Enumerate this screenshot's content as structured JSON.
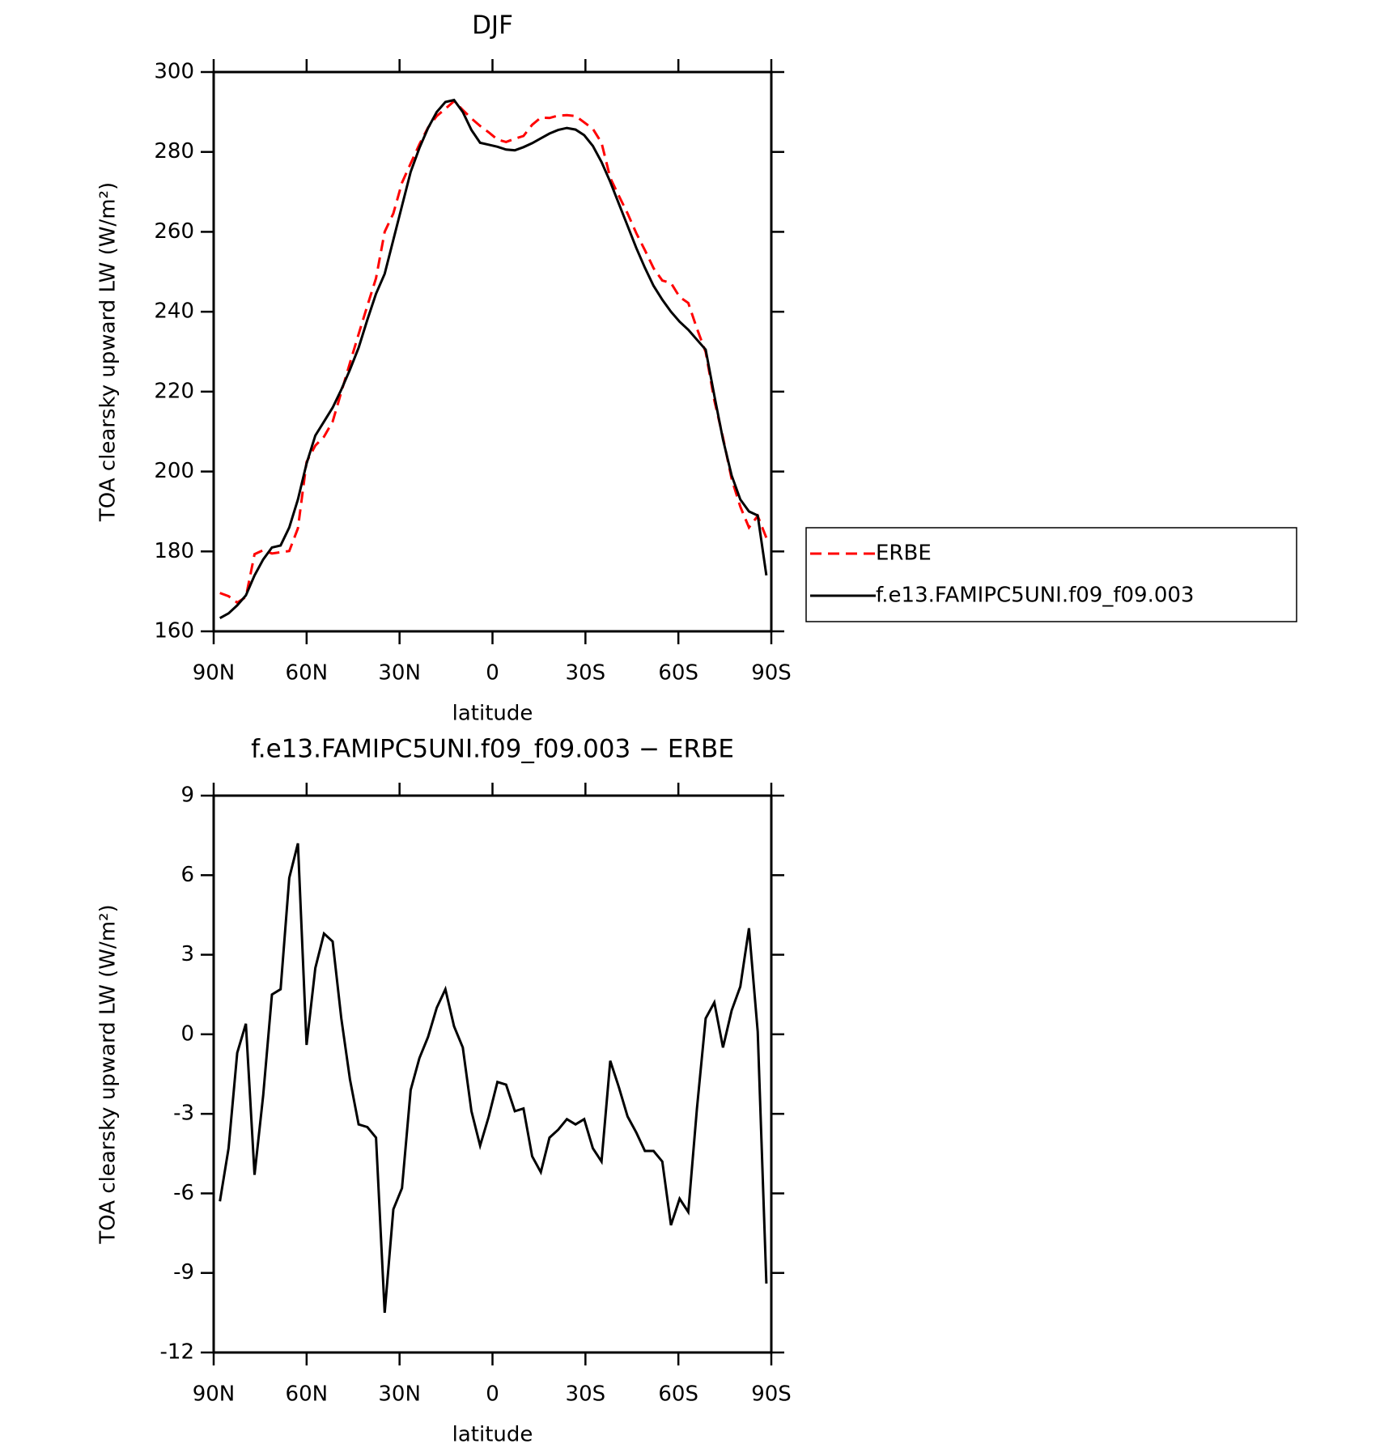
{
  "chart_data": [
    {
      "type": "line",
      "title": "DJF",
      "xlabel": "latitude",
      "ylabel": "TOA clearsky upward LW (W/m²)",
      "x": [
        88,
        85.2,
        82.4,
        79.6,
        76.8,
        74,
        71.2,
        68.4,
        65.6,
        62.8,
        60,
        57.2,
        54.4,
        51.6,
        48.8,
        46,
        43.2,
        40.4,
        37.6,
        34.8,
        32,
        29.2,
        26.4,
        23.6,
        20.8,
        18,
        15.2,
        12.4,
        9.6,
        6.8,
        4,
        1.2,
        -1.6,
        -4.4,
        -7.2,
        -10,
        -12.8,
        -15.6,
        -18.4,
        -21.2,
        -24,
        -26.8,
        -29.6,
        -32.4,
        -35.2,
        -38,
        -40.8,
        -43.6,
        -46.4,
        -49.2,
        -52,
        -54.8,
        -57.6,
        -60.4,
        -63.2,
        -66,
        -68.8,
        -71.6,
        -74.4,
        -77.2,
        -80,
        -82.8,
        -85.6,
        -88.4
      ],
      "series": [
        {
          "name": "ERBE",
          "color": "#ff0000",
          "line_style": "dashed",
          "values": [
            169.6,
            168.8,
            167.2,
            168.6,
            179.3,
            180.3,
            179.5,
            179.8,
            180.1,
            185.8,
            202.4,
            206.5,
            208.7,
            212.5,
            219.9,
            227.2,
            234.4,
            241.5,
            248.4,
            260,
            264.6,
            272.3,
            277.1,
            281.9,
            286.1,
            289,
            290.8,
            292.7,
            290.5,
            288.4,
            286.5,
            284.9,
            283.1,
            282.5,
            283.3,
            284,
            286.8,
            288.6,
            288.5,
            289.1,
            289.2,
            289,
            287.4,
            285.8,
            282.3,
            273.5,
            269,
            264.6,
            259.7,
            255.4,
            250.9,
            247.8,
            247.2,
            243.7,
            242.2,
            235.8,
            229.9,
            217.8,
            208.5,
            198.1,
            191.2,
            186,
            188.9,
            183.4
          ]
        },
        {
          "name": "f.e13.FAMIPC5UNI.f09_f09.003",
          "color": "#000000",
          "line_style": "solid",
          "values": [
            163.3,
            164.5,
            166.5,
            169,
            174,
            178,
            181,
            181.5,
            186,
            193,
            202,
            209,
            212.5,
            216,
            220.5,
            225.5,
            231,
            238,
            244.5,
            249.5,
            258,
            266.5,
            275,
            281,
            286,
            290,
            292.5,
            293,
            290,
            285.5,
            282.3,
            281.8,
            281.3,
            280.6,
            280.4,
            281.2,
            282.2,
            283.4,
            284.6,
            285.5,
            286,
            285.6,
            284.2,
            281.5,
            277.5,
            272.5,
            267,
            261.5,
            256,
            251,
            246.5,
            243,
            240,
            237.5,
            235.5,
            233,
            230.5,
            219,
            208,
            199,
            193,
            190,
            189,
            174
          ]
        }
      ],
      "xlim": [
        90,
        -90
      ],
      "xticks": [
        {
          "value": 90,
          "label": "90N"
        },
        {
          "value": 60,
          "label": "60N"
        },
        {
          "value": 30,
          "label": "30N"
        },
        0,
        {
          "value": -30,
          "label": "30S"
        },
        {
          "value": -60,
          "label": "60S"
        },
        {
          "value": -90,
          "label": "90S"
        }
      ],
      "ylim": [
        160,
        300
      ],
      "yticks": [
        160,
        180,
        200,
        220,
        240,
        260,
        280,
        300
      ],
      "legend": "right"
    },
    {
      "type": "line",
      "title": "f.e13.FAMIPC5UNI.f09_f09.003 − ERBE",
      "xlabel": "latitude",
      "ylabel": "TOA clearsky upward LW (W/m²)",
      "x": [
        88,
        85.2,
        82.4,
        79.6,
        76.8,
        74,
        71.2,
        68.4,
        65.6,
        62.8,
        60,
        57.2,
        54.4,
        51.6,
        48.8,
        46,
        43.2,
        40.4,
        37.6,
        34.8,
        32,
        29.2,
        26.4,
        23.6,
        20.8,
        18,
        15.2,
        12.4,
        9.6,
        6.8,
        4,
        1.2,
        -1.6,
        -4.4,
        -7.2,
        -10,
        -12.8,
        -15.6,
        -18.4,
        -21.2,
        -24,
        -26.8,
        -29.6,
        -32.4,
        -35.2,
        -38,
        -40.8,
        -43.6,
        -46.4,
        -49.2,
        -52,
        -54.8,
        -57.6,
        -60.4,
        -63.2,
        -66,
        -68.8,
        -71.6,
        -74.4,
        -77.2,
        -80,
        -82.8,
        -85.6,
        -88.4
      ],
      "series": [
        {
          "color": "#000000",
          "line_style": "solid",
          "values": [
            -6.3,
            -4.3,
            -0.7,
            0.4,
            -5.3,
            -2.3,
            1.5,
            1.7,
            5.9,
            7.2,
            -0.4,
            2.5,
            3.8,
            3.5,
            0.6,
            -1.7,
            -3.4,
            -3.5,
            -3.9,
            -10.5,
            -6.6,
            -5.8,
            -2.1,
            -0.9,
            -0.1,
            1.0,
            1.7,
            0.3,
            -0.5,
            -2.9,
            -4.2,
            -3.1,
            -1.8,
            -1.9,
            -2.9,
            -2.8,
            -4.6,
            -5.2,
            -3.9,
            -3.6,
            -3.2,
            -3.4,
            -3.2,
            -4.3,
            -4.8,
            -1.0,
            -2.0,
            -3.1,
            -3.7,
            -4.4,
            -4.4,
            -4.8,
            -7.2,
            -6.2,
            -6.7,
            -2.8,
            0.6,
            1.2,
            -0.5,
            0.9,
            1.8,
            4.0,
            0.1,
            -9.4
          ]
        }
      ],
      "xlim": [
        90,
        -90
      ],
      "xticks": [
        {
          "value": 90,
          "label": "90N"
        },
        {
          "value": 60,
          "label": "60N"
        },
        {
          "value": 30,
          "label": "30N"
        },
        0,
        {
          "value": -30,
          "label": "30S"
        },
        {
          "value": -60,
          "label": "60S"
        },
        {
          "value": -90,
          "label": "90S"
        }
      ],
      "ylim": [
        -12,
        9
      ],
      "yticks": [
        -12,
        -9,
        -6,
        -3,
        0,
        3,
        6,
        9
      ]
    }
  ]
}
